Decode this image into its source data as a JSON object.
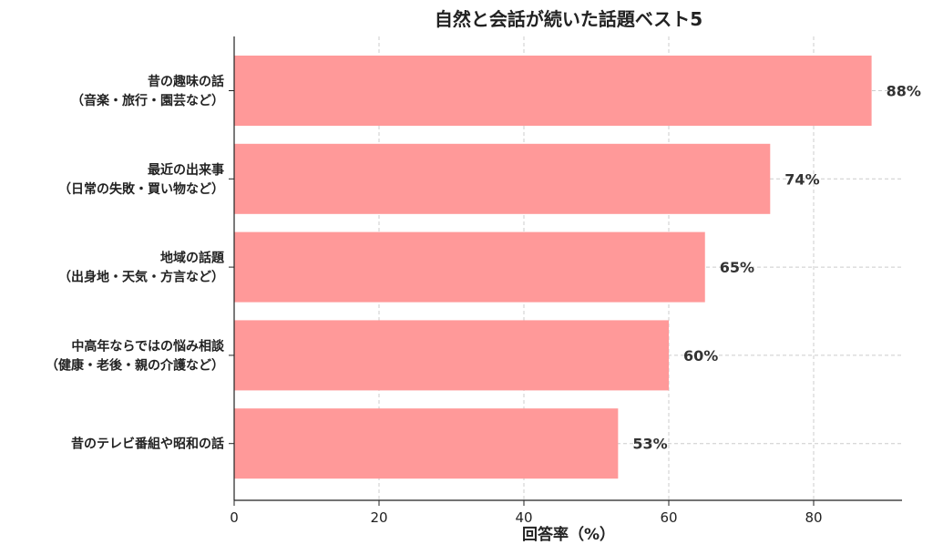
{
  "chart_data": {
    "type": "bar",
    "orientation": "horizontal",
    "title": "自然と会話が続いた話題ベスト5",
    "xlabel": "回答率（%）",
    "ylabel": "",
    "xlim": [
      0,
      92
    ],
    "xticks": [
      0,
      20,
      40,
      60,
      80
    ],
    "grid": true,
    "bar_color": "#ff9999",
    "categories": [
      [
        "昔の趣味の話",
        "（音楽・旅行・園芸など）"
      ],
      [
        "最近の出来事",
        "（日常の失敗・買い物など）"
      ],
      [
        "地域の話題",
        "（出身地・天気・方言など）"
      ],
      [
        "中高年ならではの悩み相談",
        "（健康・老後・親の介護など）"
      ],
      [
        "昔のテレビ番組や昭和の話"
      ]
    ],
    "values": [
      88,
      74,
      65,
      60,
      53
    ],
    "value_labels": [
      "88%",
      "74%",
      "65%",
      "60%",
      "53%"
    ]
  }
}
